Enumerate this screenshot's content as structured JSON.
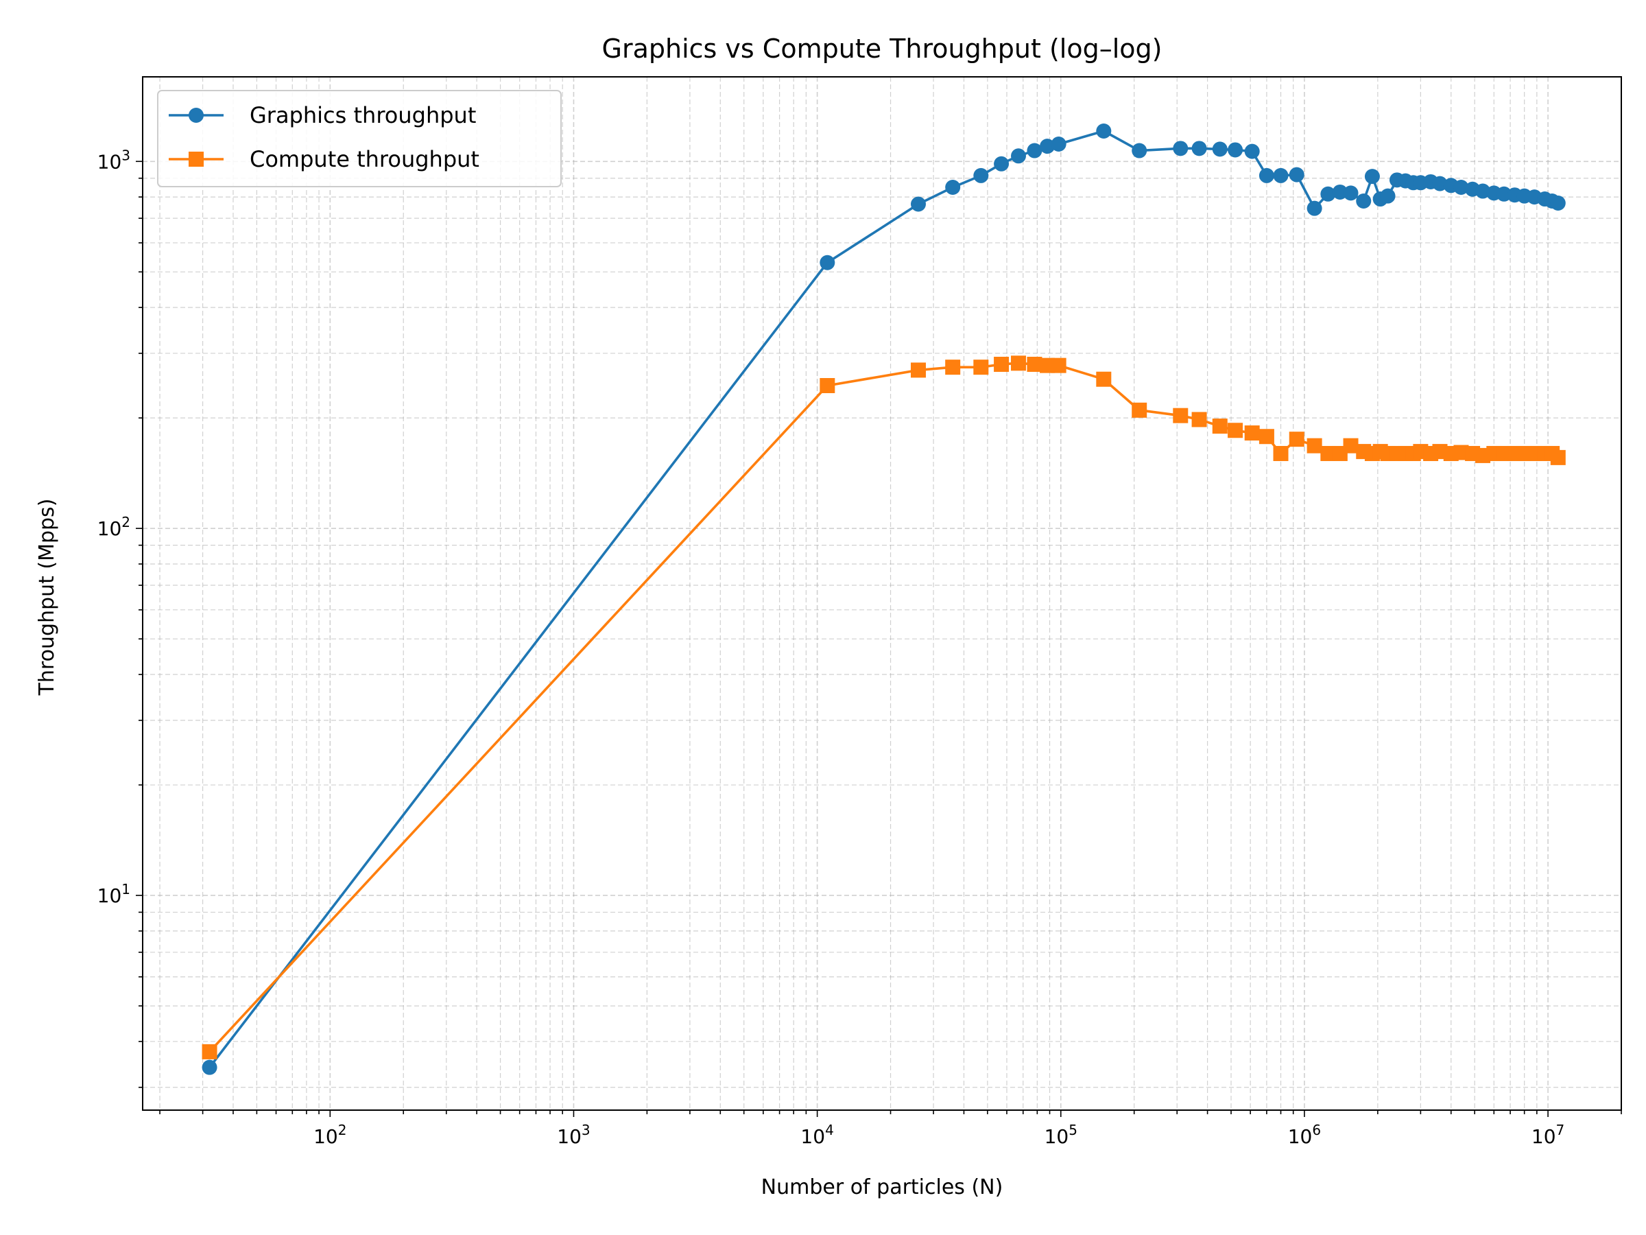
{
  "chart_data": {
    "type": "line",
    "title": "Graphics vs Compute Throughput (log–log)",
    "xlabel": "Number of particles (N)",
    "ylabel": "Throughput (Mpps)",
    "xscale": "log",
    "yscale": "log",
    "xlim": [
      17,
      20000000
    ],
    "ylim": [
      2.6,
      1700
    ],
    "grid": "both (major and minor), dashed",
    "legend_position": "upper-left",
    "x_ticks": [
      {
        "value": 100,
        "base": "10",
        "exp": "2"
      },
      {
        "value": 1000,
        "base": "10",
        "exp": "3"
      },
      {
        "value": 10000,
        "base": "10",
        "exp": "4"
      },
      {
        "value": 100000,
        "base": "10",
        "exp": "5"
      },
      {
        "value": 1000000,
        "base": "10",
        "exp": "6"
      },
      {
        "value": 10000000,
        "base": "10",
        "exp": "7"
      }
    ],
    "y_ticks": [
      {
        "value": 10,
        "base": "10",
        "exp": "1"
      },
      {
        "value": 100,
        "base": "10",
        "exp": "2"
      },
      {
        "value": 1000,
        "base": "10",
        "exp": "3"
      }
    ],
    "series": [
      {
        "name": "Graphics throughput",
        "color": "#1f77b4",
        "marker": "circle",
        "points": [
          [
            32,
            3.4
          ],
          [
            11000,
            530
          ],
          [
            26000,
            765
          ],
          [
            36000,
            850
          ],
          [
            47000,
            915
          ],
          [
            57000,
            985
          ],
          [
            67000,
            1035
          ],
          [
            78000,
            1070
          ],
          [
            88000,
            1100
          ],
          [
            98000,
            1115
          ],
          [
            150000,
            1210
          ],
          [
            210000,
            1070
          ],
          [
            310000,
            1085
          ],
          [
            370000,
            1085
          ],
          [
            450000,
            1080
          ],
          [
            520000,
            1075
          ],
          [
            610000,
            1065
          ],
          [
            700000,
            915
          ],
          [
            800000,
            915
          ],
          [
            930000,
            920
          ],
          [
            1100000,
            745
          ],
          [
            1250000,
            815
          ],
          [
            1400000,
            825
          ],
          [
            1550000,
            820
          ],
          [
            1750000,
            780
          ],
          [
            1900000,
            910
          ],
          [
            2050000,
            790
          ],
          [
            2200000,
            805
          ],
          [
            2400000,
            890
          ],
          [
            2600000,
            885
          ],
          [
            2800000,
            875
          ],
          [
            3000000,
            875
          ],
          [
            3300000,
            880
          ],
          [
            3600000,
            870
          ],
          [
            4000000,
            860
          ],
          [
            4400000,
            850
          ],
          [
            4900000,
            840
          ],
          [
            5400000,
            830
          ],
          [
            6000000,
            820
          ],
          [
            6600000,
            815
          ],
          [
            7300000,
            810
          ],
          [
            8000000,
            805
          ],
          [
            8800000,
            800
          ],
          [
            9700000,
            790
          ],
          [
            10400000,
            780
          ],
          [
            11000000,
            770
          ]
        ]
      },
      {
        "name": "Compute throughput",
        "color": "#ff7f0e",
        "marker": "square",
        "points": [
          [
            32,
            3.75
          ],
          [
            11000,
            245
          ],
          [
            26000,
            270
          ],
          [
            36000,
            275
          ],
          [
            47000,
            275
          ],
          [
            57000,
            280
          ],
          [
            67000,
            282
          ],
          [
            78000,
            280
          ],
          [
            88000,
            278
          ],
          [
            98000,
            278
          ],
          [
            150000,
            255
          ],
          [
            210000,
            210
          ],
          [
            310000,
            203
          ],
          [
            370000,
            198
          ],
          [
            450000,
            190
          ],
          [
            520000,
            185
          ],
          [
            610000,
            182
          ],
          [
            700000,
            178
          ],
          [
            800000,
            160
          ],
          [
            930000,
            175
          ],
          [
            1100000,
            168
          ],
          [
            1250000,
            160
          ],
          [
            1400000,
            160
          ],
          [
            1550000,
            168
          ],
          [
            1750000,
            162
          ],
          [
            1900000,
            160
          ],
          [
            2050000,
            162
          ],
          [
            2200000,
            160
          ],
          [
            2400000,
            160
          ],
          [
            2600000,
            160
          ],
          [
            2800000,
            160
          ],
          [
            3000000,
            162
          ],
          [
            3300000,
            160
          ],
          [
            3600000,
            162
          ],
          [
            4000000,
            160
          ],
          [
            4400000,
            161
          ],
          [
            4900000,
            160
          ],
          [
            5400000,
            158
          ],
          [
            6000000,
            160
          ],
          [
            6600000,
            160
          ],
          [
            7300000,
            160
          ],
          [
            8000000,
            160
          ],
          [
            8800000,
            160
          ],
          [
            9700000,
            160
          ],
          [
            10400000,
            160
          ],
          [
            11000000,
            156
          ]
        ]
      }
    ]
  }
}
